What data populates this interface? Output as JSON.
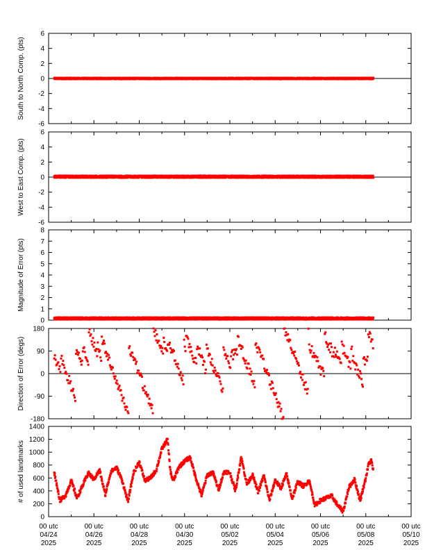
{
  "colors": {
    "series": "#ff0000",
    "axis": "#000000",
    "background": "#ffffff"
  },
  "x_axis": {
    "ticks": [
      {
        "line1": "00 utc",
        "line2": "04/24",
        "line3": "2025"
      },
      {
        "line1": "00 utc",
        "line2": "04/26",
        "line3": "2025"
      },
      {
        "line1": "00 utc",
        "line2": "04/28",
        "line3": "2025"
      },
      {
        "line1": "00 utc",
        "line2": "04/30",
        "line3": "2025"
      },
      {
        "line1": "00 utc",
        "line2": "05/02",
        "line3": "2025"
      },
      {
        "line1": "00 utc",
        "line2": "05/04",
        "line3": "2025"
      },
      {
        "line1": "00 utc",
        "line2": "05/06",
        "line3": "2025"
      },
      {
        "line1": "00 utc",
        "line2": "05/08",
        "line3": "2025"
      },
      {
        "line1": "00 utc",
        "line2": "05/10",
        "line3": "2025"
      }
    ]
  },
  "chart_data": [
    {
      "type": "scatter",
      "ylabel": "South to North Comp. (pts)",
      "ylim": [
        -6,
        6
      ],
      "yticks": [
        -6,
        -4,
        -2,
        0,
        2,
        4,
        6
      ],
      "xlim": [
        "2025-04-24",
        "2025-05-10"
      ],
      "data_extent": [
        "2025-04-24T06:00",
        "2025-05-08T08:00"
      ],
      "zero_line": true,
      "series": [
        {
          "values_summary": {
            "typical": 0.0,
            "min": -0.2,
            "max": 0.2
          }
        }
      ]
    },
    {
      "type": "scatter",
      "ylabel": "West to East Comp. (pts)",
      "ylim": [
        -6,
        6
      ],
      "yticks": [
        -6,
        -4,
        -2,
        0,
        2,
        4,
        6
      ],
      "xlim": [
        "2025-04-24",
        "2025-05-10"
      ],
      "data_extent": [
        "2025-04-24T06:00",
        "2025-05-08T08:00"
      ],
      "zero_line": true,
      "series": [
        {
          "values_summary": {
            "typical": 0.05,
            "min": -0.3,
            "max": 0.3
          }
        }
      ]
    },
    {
      "type": "scatter",
      "ylabel": "Magnitude of Error (pts)",
      "ylim": [
        0,
        8
      ],
      "yticks": [
        0,
        1,
        2,
        3,
        4,
        5,
        6,
        7,
        8
      ],
      "xlim": [
        "2025-04-24",
        "2025-05-10"
      ],
      "data_extent": [
        "2025-04-24T06:00",
        "2025-05-08T08:00"
      ],
      "zero_line": false,
      "series": [
        {
          "values_summary": {
            "typical": 0.15,
            "min": 0.0,
            "max": 0.4
          }
        }
      ]
    },
    {
      "type": "scatter",
      "ylabel": "Direction of Error (degs)",
      "ylim": [
        -180,
        180
      ],
      "yticks": [
        -180,
        -90,
        0,
        90,
        180
      ],
      "xlim": [
        "2025-04-24",
        "2025-05-10"
      ],
      "data_extent": [
        "2025-04-24T06:00",
        "2025-05-08T08:00"
      ],
      "zero_line": true,
      "series": [
        {
          "values_summary": {
            "min": -180,
            "max": 180,
            "typical": 80
          }
        }
      ]
    },
    {
      "type": "scatter",
      "ylabel": "# of used landmarks",
      "ylim": [
        0,
        1400
      ],
      "yticks": [
        0,
        200,
        400,
        600,
        800,
        1000,
        1200,
        1400
      ],
      "xlim": [
        "2025-04-24",
        "2025-05-10"
      ],
      "data_extent": [
        "2025-04-24T06:00",
        "2025-05-08T08:00"
      ],
      "zero_line": false,
      "series": [
        {
          "points": [
            [
              "2025-04-24T06:00",
              690
            ],
            [
              "2025-04-24T12:00",
              250
            ],
            [
              "2025-04-24T18:00",
              330
            ],
            [
              "2025-04-25T00:00",
              560
            ],
            [
              "2025-04-25T06:00",
              290
            ],
            [
              "2025-04-25T12:00",
              480
            ],
            [
              "2025-04-25T18:00",
              680
            ],
            [
              "2025-04-26T00:00",
              580
            ],
            [
              "2025-04-26T06:00",
              720
            ],
            [
              "2025-04-26T12:00",
              340
            ],
            [
              "2025-04-26T18:00",
              700
            ],
            [
              "2025-04-27T00:00",
              760
            ],
            [
              "2025-04-27T06:00",
              560
            ],
            [
              "2025-04-27T12:00",
              230
            ],
            [
              "2025-04-27T18:00",
              680
            ],
            [
              "2025-04-28T00:00",
              850
            ],
            [
              "2025-04-28T06:00",
              560
            ],
            [
              "2025-04-28T12:00",
              600
            ],
            [
              "2025-04-28T18:00",
              720
            ],
            [
              "2025-04-29T00:00",
              1050
            ],
            [
              "2025-04-29T06:00",
              1200
            ],
            [
              "2025-04-29T09:00",
              700
            ],
            [
              "2025-04-29T12:00",
              550
            ],
            [
              "2025-04-29T18:00",
              770
            ],
            [
              "2025-04-30T00:00",
              860
            ],
            [
              "2025-04-30T06:00",
              920
            ],
            [
              "2025-04-30T12:00",
              600
            ],
            [
              "2025-04-30T18:00",
              330
            ],
            [
              "2025-05-01T00:00",
              640
            ],
            [
              "2025-05-01T06:00",
              690
            ],
            [
              "2025-05-01T12:00",
              420
            ],
            [
              "2025-05-01T18:00",
              700
            ],
            [
              "2025-05-02T00:00",
              680
            ],
            [
              "2025-05-02T06:00",
              400
            ],
            [
              "2025-05-02T12:00",
              930
            ],
            [
              "2025-05-02T18:00",
              500
            ],
            [
              "2025-05-03T00:00",
              650
            ],
            [
              "2025-05-03T06:00",
              380
            ],
            [
              "2025-05-03T12:00",
              640
            ],
            [
              "2025-05-03T18:00",
              250
            ],
            [
              "2025-05-04T00:00",
              570
            ],
            [
              "2025-05-04T06:00",
              440
            ],
            [
              "2025-05-04T12:00",
              660
            ],
            [
              "2025-05-04T18:00",
              280
            ],
            [
              "2025-05-05T00:00",
              540
            ],
            [
              "2025-05-05T06:00",
              470
            ],
            [
              "2025-05-05T12:00",
              560
            ],
            [
              "2025-05-05T18:00",
              180
            ],
            [
              "2025-05-06T00:00",
              250
            ],
            [
              "2025-05-06T06:00",
              290
            ],
            [
              "2025-05-06T12:00",
              320
            ],
            [
              "2025-05-06T18:00",
              180
            ],
            [
              "2025-05-07T00:00",
              80
            ],
            [
              "2025-05-07T06:00",
              450
            ],
            [
              "2025-05-07T12:00",
              580
            ],
            [
              "2025-05-07T18:00",
              250
            ],
            [
              "2025-05-08T00:00",
              600
            ],
            [
              "2025-05-08T03:00",
              820
            ],
            [
              "2025-05-08T06:00",
              870
            ],
            [
              "2025-05-08T08:00",
              700
            ]
          ]
        }
      ]
    }
  ]
}
